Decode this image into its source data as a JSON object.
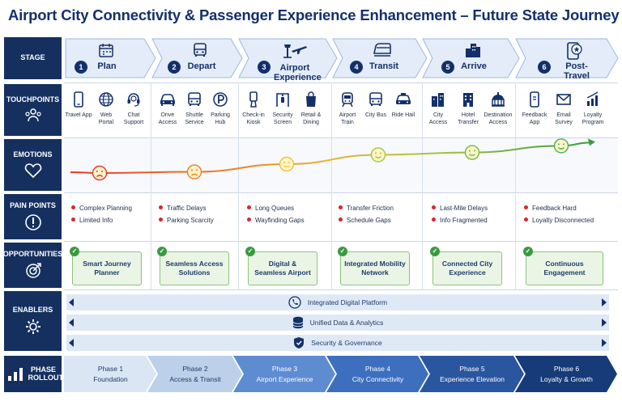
{
  "title": "Airport City Connectivity & Passenger Experience Enhancement – Future State Journey",
  "row_labels": {
    "stage": "STAGE",
    "touchpoints": "TOUCHPOINTS",
    "emotions": "EMOTIONS",
    "pain_points": "PAIN POINTS",
    "opportunities": "OPPORTUNITIES",
    "enablers": "ENABLERS",
    "phase_rollout": "PHASE ROLLOUT"
  },
  "stages": [
    {
      "num": "1",
      "label": "Plan",
      "icon": "calendar-icon"
    },
    {
      "num": "2",
      "label": "Depart",
      "icon": "bus-icon"
    },
    {
      "num": "3",
      "label": "Airport Experience",
      "icon": "airport-tower-plane-icon"
    },
    {
      "num": "4",
      "label": "Transit",
      "icon": "train-icon"
    },
    {
      "num": "5",
      "label": "Arrive",
      "icon": "city-buildings-icon"
    },
    {
      "num": "6",
      "label": "Post-Travel",
      "icon": "phone-star-icon"
    }
  ],
  "touchpoints": [
    [
      {
        "label": "Travel App",
        "icon": "phone-icon"
      },
      {
        "label": "Web Portal",
        "icon": "globe-icon"
      },
      {
        "label": "Chat Support",
        "icon": "headset-icon"
      }
    ],
    [
      {
        "label": "Drive Access",
        "icon": "car-icon"
      },
      {
        "label": "Shuttle Service",
        "icon": "bus-icon"
      },
      {
        "label": "Parking Hub",
        "icon": "parking-icon"
      }
    ],
    [
      {
        "label": "Check-in Kiosk",
        "icon": "kiosk-icon"
      },
      {
        "label": "Security Screen",
        "icon": "security-gate-icon"
      },
      {
        "label": "Retail & Dining",
        "icon": "shopping-bag-icon"
      }
    ],
    [
      {
        "label": "Airport Train",
        "icon": "train-icon"
      },
      {
        "label": "City Bus",
        "icon": "bus-icon"
      },
      {
        "label": "Ride Hail",
        "icon": "taxi-icon"
      }
    ],
    [
      {
        "label": "City Access",
        "icon": "city-buildings-icon"
      },
      {
        "label": "Hotel Transfer",
        "icon": "hotel-icon"
      },
      {
        "label": "Destination Access",
        "icon": "landmark-icon"
      }
    ],
    [
      {
        "label": "Feedback App",
        "icon": "phone-icon"
      },
      {
        "label": "Email Survey",
        "icon": "envelope-icon"
      },
      {
        "label": "Loyalty Program",
        "icon": "bar-chart-icon"
      }
    ]
  ],
  "emotions": [
    {
      "face": "frown",
      "color": "#e23a2f",
      "level": 0.25
    },
    {
      "face": "frown",
      "color": "#ef7d21",
      "level": 0.28
    },
    {
      "face": "neutral",
      "color": "#f2c230",
      "level": 0.48
    },
    {
      "face": "smile",
      "color": "#a5c63b",
      "level": 0.72
    },
    {
      "face": "smile",
      "color": "#74b843",
      "level": 0.78
    },
    {
      "face": "smile",
      "color": "#4caf50",
      "level": 0.95
    }
  ],
  "pain_points": [
    [
      "Complex Planning",
      "Limited Info"
    ],
    [
      "Traffic Delays",
      "Parking Scarcity"
    ],
    [
      "Long Queues",
      "Wayfinding Gaps"
    ],
    [
      "Transfer Friction",
      "Schedule Gaps"
    ],
    [
      "Last-Mile Delays",
      "Info Fragmented"
    ],
    [
      "Feedback Hard",
      "Loyalty Disconnected"
    ]
  ],
  "opportunities": [
    "Smart Journey Planner",
    "Seamless Access Solutions",
    "Digital & Seamless Airport",
    "Integrated Mobility Network",
    "Connected City Experience",
    "Continuous Engagement"
  ],
  "enablers": [
    {
      "label": "Integrated Digital Platform",
      "icon": "phone-ring-icon"
    },
    {
      "label": "Unified Data & Analytics",
      "icon": "database-icon"
    },
    {
      "label": "Security & Governance",
      "icon": "shield-icon"
    }
  ],
  "phases": [
    {
      "title": "Phase 1",
      "name": "Foundation",
      "fill": "#dbe6f4",
      "text": "#1e3b6b"
    },
    {
      "title": "Phase 2",
      "name": "Access & Transit",
      "fill": "#bcd0ea",
      "text": "#1e3b6b"
    },
    {
      "title": "Phase 3",
      "name": "Airport Experience",
      "fill": "#5e8cd0",
      "text": "#ffffff"
    },
    {
      "title": "Phase 4",
      "name": "City Connectivity",
      "fill": "#3d6fbe",
      "text": "#ffffff"
    },
    {
      "title": "Phase 5",
      "name": "Experience Elevation",
      "fill": "#2a559f",
      "text": "#ffffff"
    },
    {
      "title": "Phase 6",
      "name": "Loyalty & Growth",
      "fill": "#173a78",
      "text": "#ffffff"
    }
  ],
  "colors": {
    "navy": "#15305f",
    "accent_blue": "#2a559f",
    "positive_green": "#3a9a3f",
    "pain_red": "#d7262e"
  }
}
